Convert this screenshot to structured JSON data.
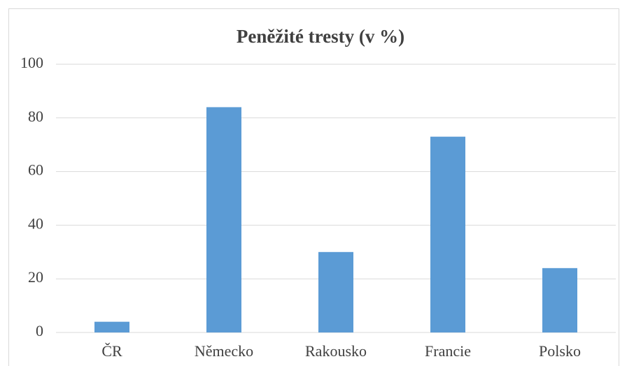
{
  "chart_data": {
    "type": "bar",
    "title": "Peněžité tresty (v %)",
    "categories": [
      "ČR",
      "Německo",
      "Rakousko",
      "Francie",
      "Polsko"
    ],
    "values": [
      4,
      84,
      30,
      73,
      24
    ],
    "color": "#5b9bd5",
    "ylim": [
      0,
      100
    ],
    "yticks": [
      0,
      20,
      40,
      60,
      80,
      100
    ],
    "grid": true
  }
}
